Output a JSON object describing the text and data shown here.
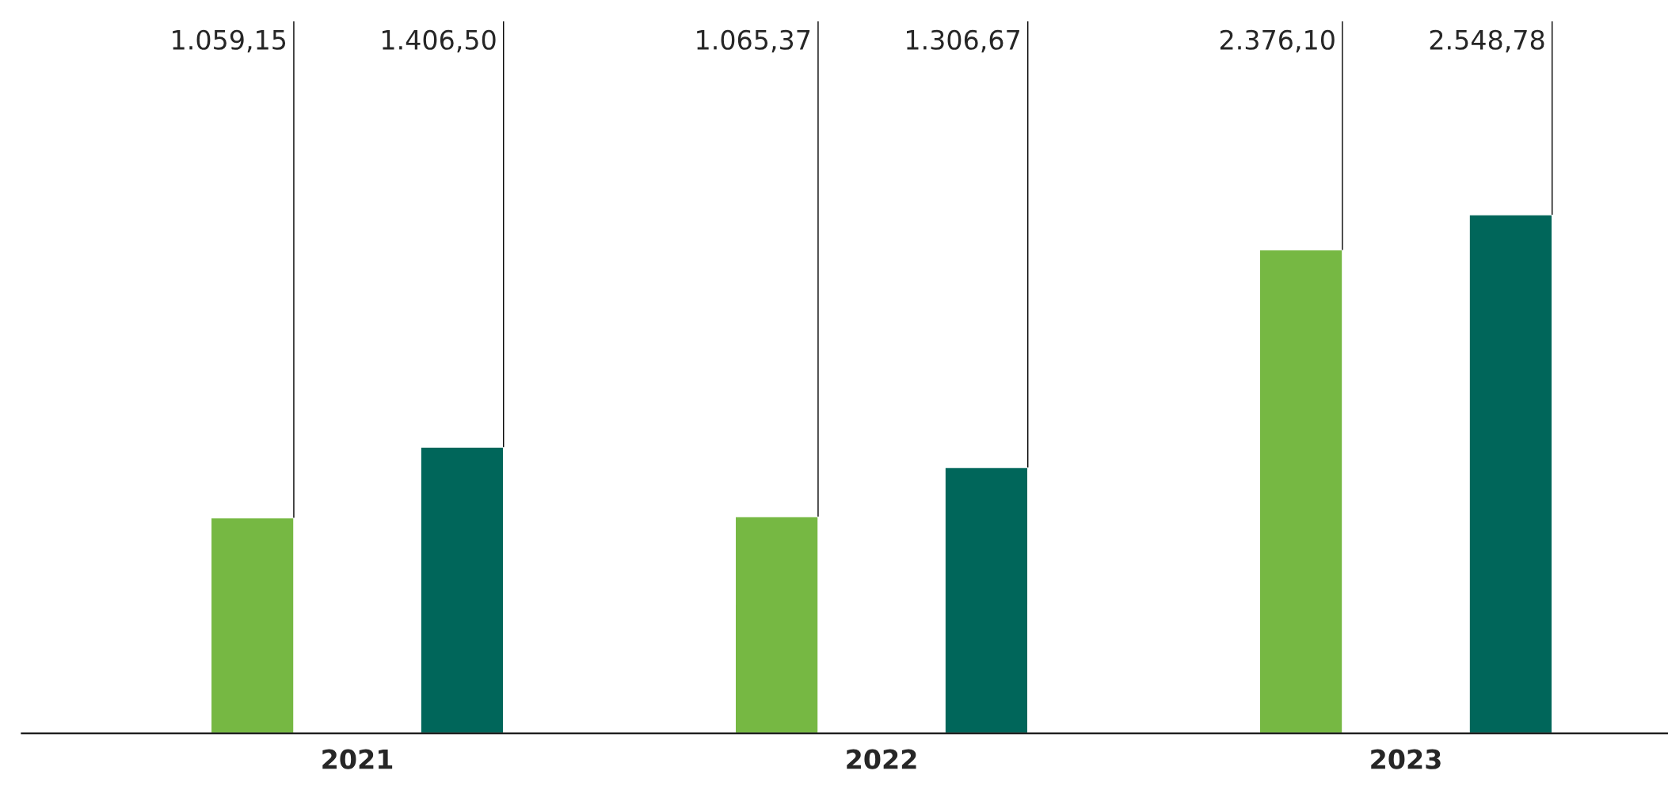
{
  "chart_data": {
    "type": "bar",
    "categories": [
      "2021",
      "2022",
      "2023"
    ],
    "series": [
      {
        "color": "#76b843",
        "values": [
          1059.15,
          1065.37,
          2376.1
        ],
        "value_labels": [
          "1.059,15",
          "1.065,37",
          "2.376,10"
        ]
      },
      {
        "color": "#00665a",
        "values": [
          1406.5,
          1306.67,
          2548.78
        ],
        "value_labels": [
          "1.406,50",
          "1.306,67",
          "2.548,78"
        ]
      }
    ],
    "ylim": [
      0,
      3500
    ],
    "tick_labels": "x",
    "grid": false,
    "legend": false
  }
}
